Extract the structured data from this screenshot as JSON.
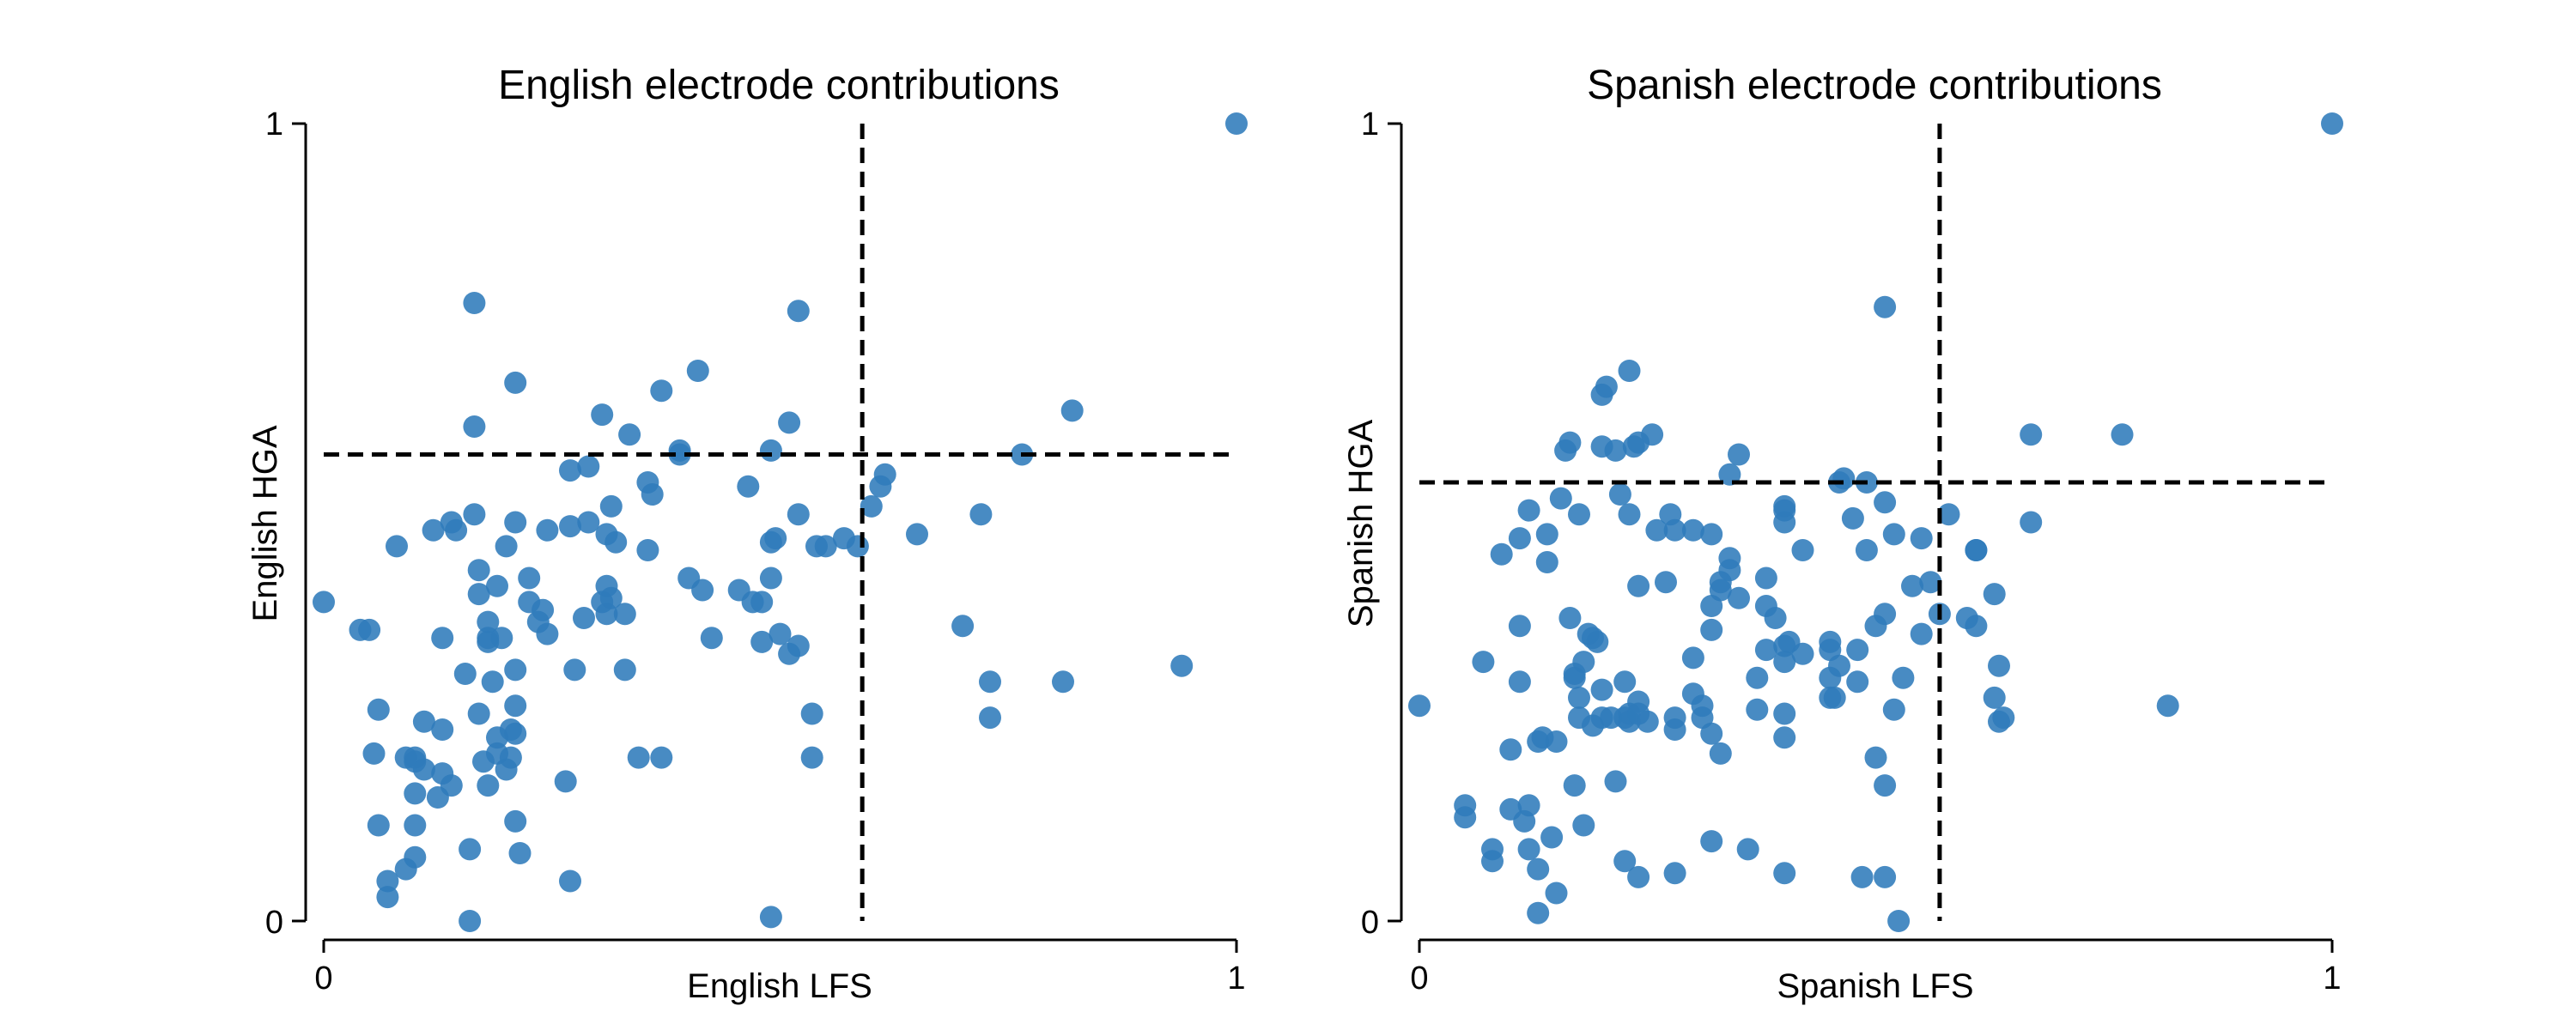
{
  "chart_data": [
    {
      "type": "scatter",
      "title": "English electrode contributions",
      "xlabel": "English LFS",
      "ylabel": "English HGA",
      "xlim": [
        0,
        1
      ],
      "ylim": [
        0,
        1
      ],
      "xticks": [
        "0",
        "1"
      ],
      "yticks": [
        "0",
        "1"
      ],
      "grid": false,
      "legend": "none",
      "point_color": "#2f7bbb",
      "reference_lines": {
        "vertical_x": 0.59,
        "horizontal_y": 0.585,
        "style": "dashed",
        "color": "#000000"
      },
      "points": [
        [
          0.0,
          0.4
        ],
        [
          0.04,
          0.365
        ],
        [
          0.05,
          0.365
        ],
        [
          0.06,
          0.265
        ],
        [
          0.055,
          0.21
        ],
        [
          0.06,
          0.12
        ],
        [
          0.07,
          0.05
        ],
        [
          0.07,
          0.03
        ],
        [
          0.08,
          0.47
        ],
        [
          0.09,
          0.065
        ],
        [
          0.1,
          0.08
        ],
        [
          0.1,
          0.12
        ],
        [
          0.1,
          0.2
        ],
        [
          0.1,
          0.205
        ],
        [
          0.09,
          0.205
        ],
        [
          0.1,
          0.16
        ],
        [
          0.11,
          0.25
        ],
        [
          0.11,
          0.19
        ],
        [
          0.12,
          0.49
        ],
        [
          0.125,
          0.155
        ],
        [
          0.13,
          0.355
        ],
        [
          0.13,
          0.24
        ],
        [
          0.13,
          0.185
        ],
        [
          0.14,
          0.5
        ],
        [
          0.14,
          0.17
        ],
        [
          0.145,
          0.49
        ],
        [
          0.155,
          0.31
        ],
        [
          0.16,
          0.09
        ],
        [
          0.16,
          0.0
        ],
        [
          0.165,
          0.51
        ],
        [
          0.165,
          0.62
        ],
        [
          0.165,
          0.775
        ],
        [
          0.17,
          0.44
        ],
        [
          0.17,
          0.41
        ],
        [
          0.17,
          0.26
        ],
        [
          0.175,
          0.2
        ],
        [
          0.18,
          0.375
        ],
        [
          0.18,
          0.355
        ],
        [
          0.18,
          0.35
        ],
        [
          0.18,
          0.17
        ],
        [
          0.185,
          0.3
        ],
        [
          0.19,
          0.42
        ],
        [
          0.19,
          0.23
        ],
        [
          0.19,
          0.21
        ],
        [
          0.195,
          0.355
        ],
        [
          0.2,
          0.47
        ],
        [
          0.2,
          0.19
        ],
        [
          0.205,
          0.24
        ],
        [
          0.205,
          0.205
        ],
        [
          0.21,
          0.315
        ],
        [
          0.21,
          0.27
        ],
        [
          0.21,
          0.235
        ],
        [
          0.21,
          0.125
        ],
        [
          0.21,
          0.5
        ],
        [
          0.21,
          0.675
        ],
        [
          0.215,
          0.085
        ],
        [
          0.225,
          0.43
        ],
        [
          0.225,
          0.4
        ],
        [
          0.235,
          0.375
        ],
        [
          0.24,
          0.39
        ],
        [
          0.245,
          0.36
        ],
        [
          0.245,
          0.49
        ],
        [
          0.265,
          0.175
        ],
        [
          0.27,
          0.05
        ],
        [
          0.27,
          0.495
        ],
        [
          0.27,
          0.565
        ],
        [
          0.275,
          0.315
        ],
        [
          0.285,
          0.38
        ],
        [
          0.29,
          0.5
        ],
        [
          0.29,
          0.57
        ],
        [
          0.305,
          0.635
        ],
        [
          0.305,
          0.4
        ],
        [
          0.31,
          0.485
        ],
        [
          0.31,
          0.42
        ],
        [
          0.31,
          0.385
        ],
        [
          0.315,
          0.405
        ],
        [
          0.315,
          0.52
        ],
        [
          0.32,
          0.475
        ],
        [
          0.33,
          0.315
        ],
        [
          0.33,
          0.385
        ],
        [
          0.335,
          0.61
        ],
        [
          0.345,
          0.205
        ],
        [
          0.355,
          0.465
        ],
        [
          0.355,
          0.55
        ],
        [
          0.36,
          0.535
        ],
        [
          0.37,
          0.665
        ],
        [
          0.37,
          0.205
        ],
        [
          0.39,
          0.585
        ],
        [
          0.39,
          0.59
        ],
        [
          0.4,
          0.43
        ],
        [
          0.41,
          0.69
        ],
        [
          0.415,
          0.415
        ],
        [
          0.425,
          0.355
        ],
        [
          0.455,
          0.415
        ],
        [
          0.465,
          0.545
        ],
        [
          0.47,
          0.4
        ],
        [
          0.48,
          0.4
        ],
        [
          0.48,
          0.35
        ],
        [
          0.49,
          0.43
        ],
        [
          0.49,
          0.475
        ],
        [
          0.49,
          0.59
        ],
        [
          0.49,
          0.005
        ],
        [
          0.495,
          0.48
        ],
        [
          0.5,
          0.36
        ],
        [
          0.51,
          0.625
        ],
        [
          0.51,
          0.335
        ],
        [
          0.52,
          0.765
        ],
        [
          0.52,
          0.51
        ],
        [
          0.52,
          0.345
        ],
        [
          0.535,
          0.26
        ],
        [
          0.535,
          0.205
        ],
        [
          0.54,
          0.47
        ],
        [
          0.55,
          0.47
        ],
        [
          0.57,
          0.48
        ],
        [
          0.585,
          0.47
        ],
        [
          0.6,
          0.52
        ],
        [
          0.61,
          0.545
        ],
        [
          0.615,
          0.56
        ],
        [
          0.65,
          0.485
        ],
        [
          0.7,
          0.37
        ],
        [
          0.72,
          0.51
        ],
        [
          0.73,
          0.3
        ],
        [
          0.73,
          0.255
        ],
        [
          0.765,
          0.585
        ],
        [
          0.81,
          0.3
        ],
        [
          0.82,
          0.64
        ],
        [
          0.94,
          0.32
        ],
        [
          1.0,
          1.0
        ]
      ]
    },
    {
      "type": "scatter",
      "title": "Spanish electrode contributions",
      "xlabel": "Spanish LFS",
      "ylabel": "Spanish HGA",
      "xlim": [
        0,
        1
      ],
      "ylim": [
        0,
        1
      ],
      "xticks": [
        "0",
        "1"
      ],
      "yticks": [
        "0",
        "1"
      ],
      "grid": false,
      "legend": "none",
      "point_color": "#2f7bbb",
      "reference_lines": {
        "vertical_x": 0.57,
        "horizontal_y": 0.55,
        "style": "dashed",
        "color": "#000000"
      },
      "points": [
        [
          0.0,
          0.27
        ],
        [
          0.05,
          0.13
        ],
        [
          0.05,
          0.145
        ],
        [
          0.07,
          0.325
        ],
        [
          0.08,
          0.075
        ],
        [
          0.08,
          0.09
        ],
        [
          0.09,
          0.46
        ],
        [
          0.1,
          0.215
        ],
        [
          0.1,
          0.14
        ],
        [
          0.11,
          0.48
        ],
        [
          0.11,
          0.37
        ],
        [
          0.11,
          0.3
        ],
        [
          0.115,
          0.125
        ],
        [
          0.12,
          0.145
        ],
        [
          0.12,
          0.09
        ],
        [
          0.12,
          0.515
        ],
        [
          0.13,
          0.01
        ],
        [
          0.13,
          0.065
        ],
        [
          0.13,
          0.225
        ],
        [
          0.135,
          0.23
        ],
        [
          0.14,
          0.45
        ],
        [
          0.14,
          0.485
        ],
        [
          0.145,
          0.105
        ],
        [
          0.15,
          0.225
        ],
        [
          0.15,
          0.035
        ],
        [
          0.155,
          0.53
        ],
        [
          0.16,
          0.59
        ],
        [
          0.165,
          0.38
        ],
        [
          0.165,
          0.6
        ],
        [
          0.17,
          0.17
        ],
        [
          0.17,
          0.305
        ],
        [
          0.17,
          0.31
        ],
        [
          0.175,
          0.51
        ],
        [
          0.175,
          0.28
        ],
        [
          0.175,
          0.255
        ],
        [
          0.18,
          0.325
        ],
        [
          0.18,
          0.12
        ],
        [
          0.185,
          0.36
        ],
        [
          0.19,
          0.245
        ],
        [
          0.19,
          0.355
        ],
        [
          0.195,
          0.35
        ],
        [
          0.2,
          0.66
        ],
        [
          0.2,
          0.595
        ],
        [
          0.2,
          0.255
        ],
        [
          0.2,
          0.29
        ],
        [
          0.205,
          0.67
        ],
        [
          0.21,
          0.255
        ],
        [
          0.215,
          0.175
        ],
        [
          0.215,
          0.59
        ],
        [
          0.22,
          0.535
        ],
        [
          0.225,
          0.075
        ],
        [
          0.225,
          0.3
        ],
        [
          0.225,
          0.255
        ],
        [
          0.23,
          0.69
        ],
        [
          0.23,
          0.26
        ],
        [
          0.23,
          0.25
        ],
        [
          0.23,
          0.51
        ],
        [
          0.235,
          0.595
        ],
        [
          0.24,
          0.42
        ],
        [
          0.24,
          0.275
        ],
        [
          0.24,
          0.055
        ],
        [
          0.25,
          0.25
        ],
        [
          0.24,
          0.26
        ],
        [
          0.24,
          0.6
        ],
        [
          0.255,
          0.61
        ],
        [
          0.26,
          0.49
        ],
        [
          0.27,
          0.425
        ],
        [
          0.275,
          0.51
        ],
        [
          0.28,
          0.06
        ],
        [
          0.28,
          0.24
        ],
        [
          0.28,
          0.255
        ],
        [
          0.28,
          0.49
        ],
        [
          0.3,
          0.33
        ],
        [
          0.3,
          0.285
        ],
        [
          0.3,
          0.49
        ],
        [
          0.31,
          0.27
        ],
        [
          0.31,
          0.255
        ],
        [
          0.32,
          0.1
        ],
        [
          0.32,
          0.485
        ],
        [
          0.32,
          0.395
        ],
        [
          0.32,
          0.365
        ],
        [
          0.32,
          0.235
        ],
        [
          0.33,
          0.21
        ],
        [
          0.33,
          0.415
        ],
        [
          0.33,
          0.425
        ],
        [
          0.34,
          0.56
        ],
        [
          0.34,
          0.44
        ],
        [
          0.34,
          0.455
        ],
        [
          0.35,
          0.405
        ],
        [
          0.36,
          0.09
        ],
        [
          0.35,
          0.585
        ],
        [
          0.37,
          0.265
        ],
        [
          0.37,
          0.305
        ],
        [
          0.38,
          0.43
        ],
        [
          0.38,
          0.34
        ],
        [
          0.38,
          0.395
        ],
        [
          0.39,
          0.38
        ],
        [
          0.4,
          0.52
        ],
        [
          0.4,
          0.26
        ],
        [
          0.4,
          0.5
        ],
        [
          0.4,
          0.515
        ],
        [
          0.4,
          0.23
        ],
        [
          0.4,
          0.06
        ],
        [
          0.4,
          0.325
        ],
        [
          0.4,
          0.345
        ],
        [
          0.405,
          0.35
        ],
        [
          0.42,
          0.335
        ],
        [
          0.42,
          0.465
        ],
        [
          0.45,
          0.35
        ],
        [
          0.45,
          0.305
        ],
        [
          0.45,
          0.34
        ],
        [
          0.45,
          0.28
        ],
        [
          0.455,
          0.28
        ],
        [
          0.46,
          0.32
        ],
        [
          0.46,
          0.55
        ],
        [
          0.465,
          0.555
        ],
        [
          0.475,
          0.505
        ],
        [
          0.48,
          0.3
        ],
        [
          0.48,
          0.34
        ],
        [
          0.485,
          0.055
        ],
        [
          0.49,
          0.55
        ],
        [
          0.49,
          0.465
        ],
        [
          0.5,
          0.37
        ],
        [
          0.5,
          0.205
        ],
        [
          0.51,
          0.385
        ],
        [
          0.51,
          0.77
        ],
        [
          0.51,
          0.525
        ],
        [
          0.51,
          0.17
        ],
        [
          0.51,
          0.055
        ],
        [
          0.52,
          0.485
        ],
        [
          0.52,
          0.265
        ],
        [
          0.525,
          0.0
        ],
        [
          0.53,
          0.305
        ],
        [
          0.54,
          0.42
        ],
        [
          0.55,
          0.36
        ],
        [
          0.55,
          0.48
        ],
        [
          0.56,
          0.425
        ],
        [
          0.57,
          0.385
        ],
        [
          0.58,
          0.51
        ],
        [
          0.6,
          0.38
        ],
        [
          0.61,
          0.465
        ],
        [
          0.61,
          0.465
        ],
        [
          0.61,
          0.37
        ],
        [
          0.63,
          0.41
        ],
        [
          0.635,
          0.32
        ],
        [
          0.63,
          0.28
        ],
        [
          0.635,
          0.25
        ],
        [
          0.64,
          0.255
        ],
        [
          0.67,
          0.5
        ],
        [
          0.67,
          0.61
        ],
        [
          0.77,
          0.61
        ],
        [
          0.82,
          0.27
        ],
        [
          1.0,
          1.0
        ]
      ]
    }
  ]
}
